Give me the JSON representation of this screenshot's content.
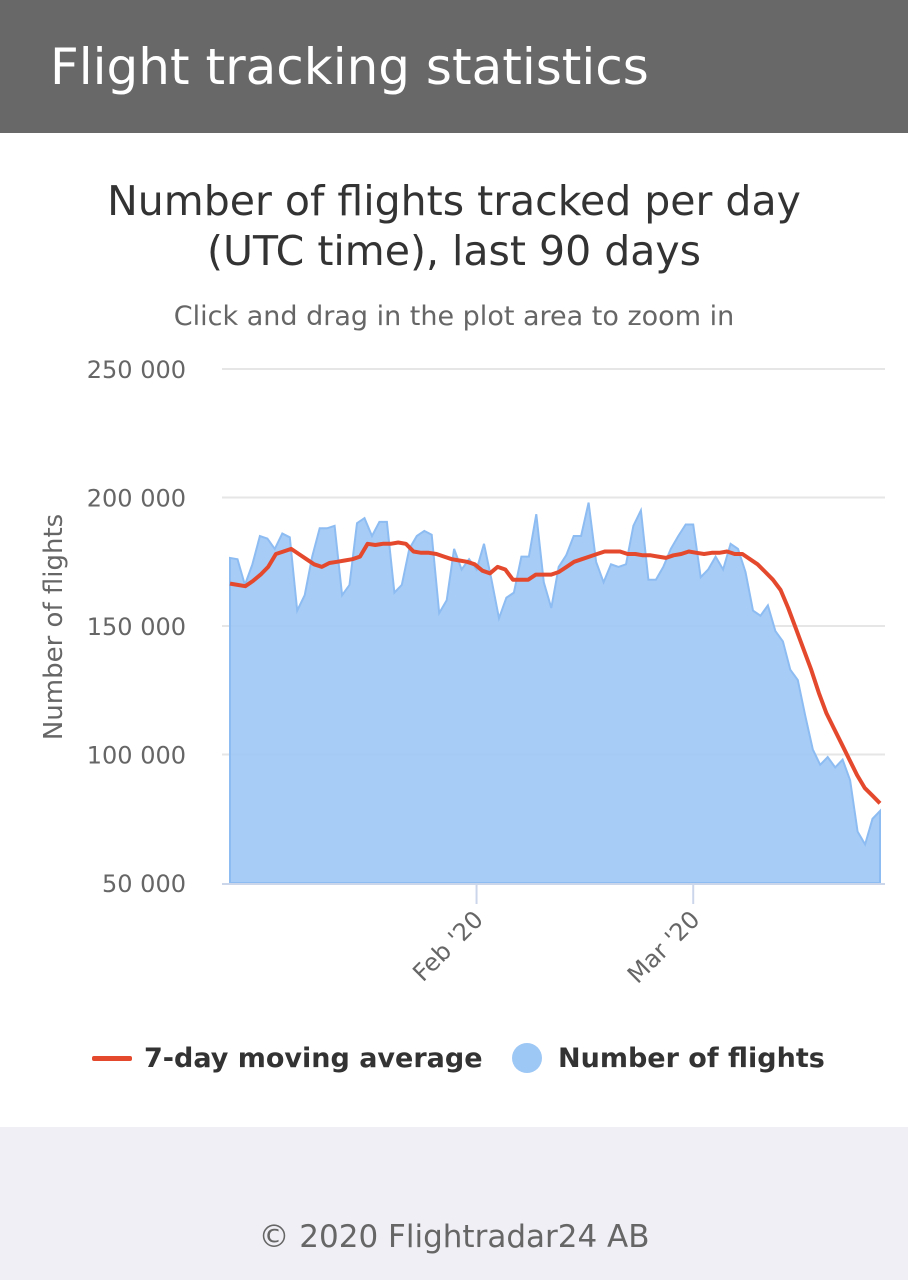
{
  "header": {
    "title": "Flight tracking statistics"
  },
  "chart_data": {
    "type": "area",
    "title": "Number of flights tracked per day (UTC time), last 90 days",
    "subtitle": "Click and drag in the plot area to zoom in",
    "ylabel": "Number of flights",
    "xlabel": "",
    "ylim": [
      50000,
      250000
    ],
    "yticks": [
      50000,
      100000,
      150000,
      200000,
      250000
    ],
    "ytick_labels": [
      "50 000",
      "100 000",
      "150 000",
      "200 000",
      "250 000"
    ],
    "x_start": "2019-12-30",
    "xticks": [
      {
        "date": "2020-02-01",
        "label": "Feb '20"
      },
      {
        "date": "2020-03-01",
        "label": "Mar '20"
      }
    ],
    "grid": true,
    "legend_position": "bottom",
    "series": [
      {
        "name": "Number of flights",
        "type": "area",
        "color": "#9dc7f5",
        "values": [
          176500,
          176000,
          166000,
          174000,
          185000,
          184000,
          180000,
          186000,
          184500,
          156000,
          162000,
          177000,
          188000,
          188000,
          189000,
          162000,
          166000,
          190000,
          192000,
          185000,
          190500,
          190500,
          163000,
          166000,
          180000,
          185000,
          187000,
          185500,
          155000,
          160000,
          180000,
          172000,
          176000,
          172000,
          182000,
          168000,
          153000,
          161000,
          163000,
          177000,
          177000,
          193500,
          167000,
          157000,
          173000,
          177500,
          185000,
          185000,
          198000,
          175000,
          167000,
          174000,
          173000,
          174000,
          189000,
          195000,
          168000,
          168000,
          173000,
          180000,
          185000,
          189500,
          189500,
          169000,
          172000,
          177000,
          172000,
          182000,
          180000,
          171000,
          156000,
          154000,
          158000,
          148000,
          144000,
          133000,
          129000,
          115000,
          102000,
          96000,
          99000,
          95000,
          98000,
          90000,
          70000,
          65000,
          75000,
          78000
        ],
        "moving_average": [
          166500,
          166000,
          165500,
          167500,
          170000,
          173000,
          178000,
          179000,
          180000,
          178000,
          176000,
          174000,
          173000,
          174500,
          175000,
          175500,
          176000,
          177000,
          182000,
          181500,
          182000,
          182000,
          182500,
          182000,
          179000,
          178500,
          178500,
          178000,
          177000,
          176000,
          175500,
          175000,
          174000,
          171500,
          170500,
          173000,
          172000,
          168000,
          168000,
          168000,
          170000,
          170000,
          170000,
          171000,
          173000,
          175000,
          176000,
          177000,
          178000,
          179000,
          179000,
          179000,
          178000,
          178000,
          177500,
          177500,
          177000,
          176500,
          177500,
          178000,
          179000,
          178500,
          178000,
          178500,
          178500,
          179000,
          178000,
          178000,
          176000,
          174000,
          171000,
          168000,
          164000,
          157000,
          149000,
          141000,
          133000,
          124000,
          116000,
          110000,
          104000,
          98000,
          92000,
          87000,
          84000,
          81000
        ],
        "moving_average_name": "7-day moving average",
        "moving_average_color": "#e4492e"
      }
    ]
  },
  "legend": {
    "moving_average_label": "7-day moving average",
    "flights_label": "Number of flights",
    "moving_average_color": "#e4492e",
    "flights_color": "#9dc7f5"
  },
  "footer": {
    "text": "© 2020 Flightradar24 AB"
  }
}
